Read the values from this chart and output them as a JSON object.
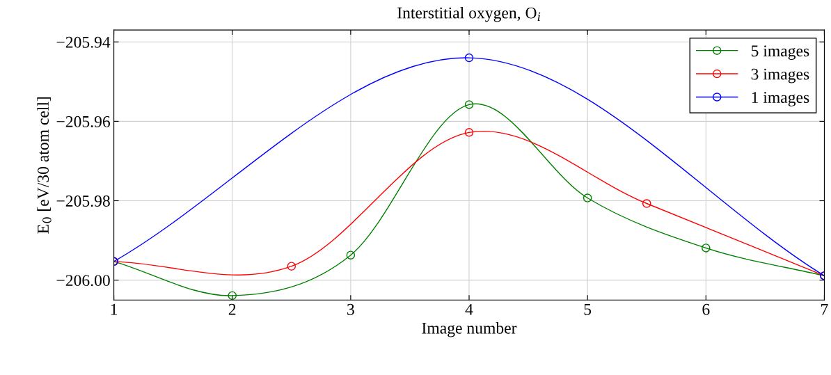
{
  "chart_data": {
    "type": "line",
    "title": "Interstitial oxygen, O$_{i}$",
    "xlabel": "Image number",
    "ylabel": "E$_{0}$ [eV/30 atom cell]",
    "series": [
      {
        "name": "5 images",
        "color": "#008000",
        "x": [
          1,
          2,
          3,
          4,
          5,
          6,
          7
        ],
        "values": [
          -205.9953,
          -206.0039,
          -205.9937,
          -205.9558,
          -205.9793,
          -205.9919,
          -205.9989
        ]
      },
      {
        "name": "3 images",
        "color": "#ff0000",
        "x": [
          1,
          2.5,
          4,
          5.5,
          7
        ],
        "values": [
          -205.9953,
          -205.9965,
          -205.9628,
          -205.9807,
          -205.9989
        ]
      },
      {
        "name": "1 images",
        "color": "#0000ff",
        "x": [
          1,
          4,
          7
        ],
        "values": [
          -205.9953,
          -205.944,
          -205.9989
        ]
      }
    ],
    "xlim": [
      1,
      7
    ],
    "xticks": [
      1,
      2,
      3,
      4,
      5,
      6,
      7
    ],
    "ylim": [
      -206.005,
      -205.937
    ],
    "yticks": [
      {
        "value": -206.0,
        "label": "−206.00"
      },
      {
        "value": -205.98,
        "label": "−205.98"
      },
      {
        "value": -205.96,
        "label": "−205.96"
      },
      {
        "value": -205.94,
        "label": "−205.94"
      }
    ],
    "grid": true,
    "legend": "top right",
    "marker": "circle",
    "line_style": "solid"
  }
}
